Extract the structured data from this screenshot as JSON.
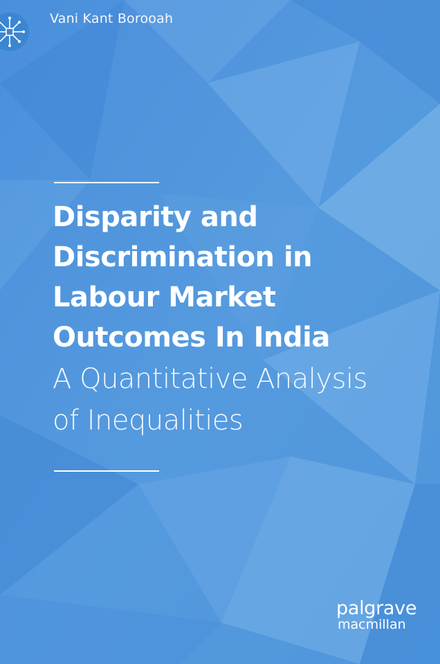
{
  "cover": {
    "author": "Vani Kant Borooah",
    "title_lines": [
      "Disparity and",
      "Discrimination in",
      "Labour Market",
      "Outcomes In India"
    ],
    "subtitle_lines": [
      "A Quantitative Analysis",
      "of Inequalities"
    ],
    "publisher": {
      "line1": "palgrave",
      "line2": "macmillan"
    },
    "logo_icon": "palgrave-network-icon",
    "colors": {
      "background": "#4d93dc",
      "text": "#ffffff"
    }
  }
}
